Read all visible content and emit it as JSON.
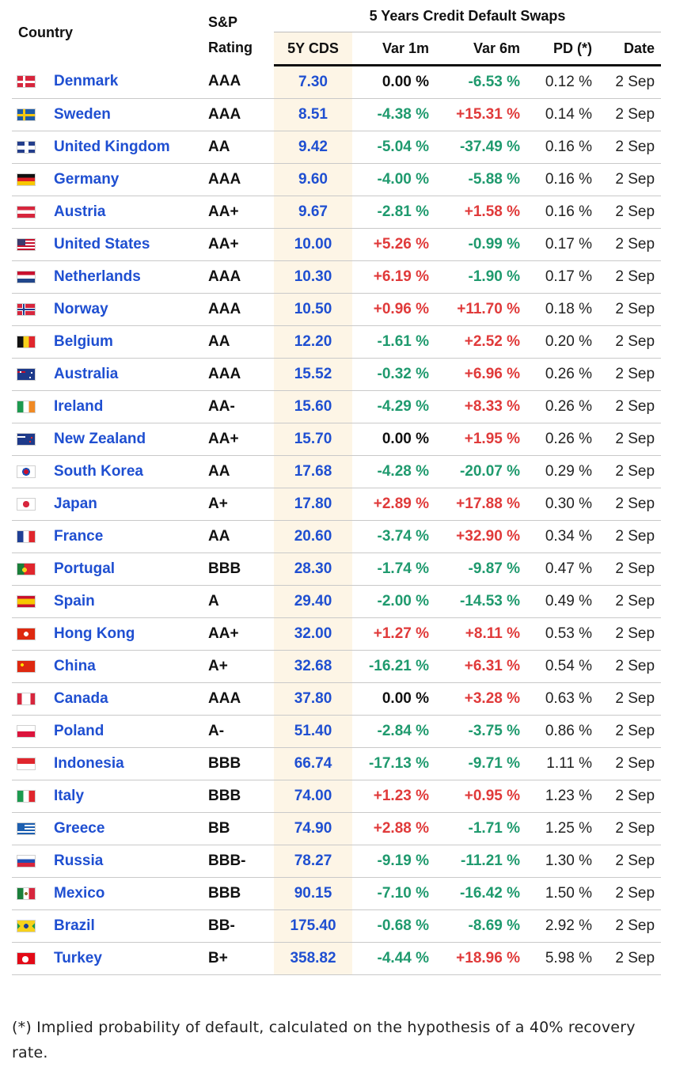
{
  "header": {
    "country": "Country",
    "rating": "S&P Rating",
    "group": "5 Years Credit Default Swaps",
    "cds": "5Y CDS",
    "var1m": "Var 1m",
    "var6m": "Var 6m",
    "pd": "PD (*)",
    "date": "Date"
  },
  "rows": [
    {
      "flag": "denmark-flag",
      "country": "Denmark",
      "rating": "AAA",
      "cds": "7.30",
      "var1m": "0.00 %",
      "var6m": "-6.53 %",
      "pd": "0.12 %",
      "date": "2 Sep"
    },
    {
      "flag": "sweden-flag",
      "country": "Sweden",
      "rating": "AAA",
      "cds": "8.51",
      "var1m": "-4.38 %",
      "var6m": "+15.31 %",
      "pd": "0.14 %",
      "date": "2 Sep"
    },
    {
      "flag": "uk-flag",
      "country": "United Kingdom",
      "rating": "AA",
      "cds": "9.42",
      "var1m": "-5.04 %",
      "var6m": "-37.49 %",
      "pd": "0.16 %",
      "date": "2 Sep"
    },
    {
      "flag": "germany-flag",
      "country": "Germany",
      "rating": "AAA",
      "cds": "9.60",
      "var1m": "-4.00 %",
      "var6m": "-5.88 %",
      "pd": "0.16 %",
      "date": "2 Sep"
    },
    {
      "flag": "austria-flag",
      "country": "Austria",
      "rating": "AA+",
      "cds": "9.67",
      "var1m": "-2.81 %",
      "var6m": "+1.58 %",
      "pd": "0.16 %",
      "date": "2 Sep"
    },
    {
      "flag": "us-flag",
      "country": "United States",
      "rating": "AA+",
      "cds": "10.00",
      "var1m": "+5.26 %",
      "var6m": "-0.99 %",
      "pd": "0.17 %",
      "date": "2 Sep"
    },
    {
      "flag": "netherlands-flag",
      "country": "Netherlands",
      "rating": "AAA",
      "cds": "10.30",
      "var1m": "+6.19 %",
      "var6m": "-1.90 %",
      "pd": "0.17 %",
      "date": "2 Sep"
    },
    {
      "flag": "norway-flag",
      "country": "Norway",
      "rating": "AAA",
      "cds": "10.50",
      "var1m": "+0.96 %",
      "var6m": "+11.70 %",
      "pd": "0.18 %",
      "date": "2 Sep"
    },
    {
      "flag": "belgium-flag",
      "country": "Belgium",
      "rating": "AA",
      "cds": "12.20",
      "var1m": "-1.61 %",
      "var6m": "+2.52 %",
      "pd": "0.20 %",
      "date": "2 Sep"
    },
    {
      "flag": "australia-flag",
      "country": "Australia",
      "rating": "AAA",
      "cds": "15.52",
      "var1m": "-0.32 %",
      "var6m": "+6.96 %",
      "pd": "0.26 %",
      "date": "2 Sep"
    },
    {
      "flag": "ireland-flag",
      "country": "Ireland",
      "rating": "AA-",
      "cds": "15.60",
      "var1m": "-4.29 %",
      "var6m": "+8.33 %",
      "pd": "0.26 %",
      "date": "2 Sep"
    },
    {
      "flag": "new-zealand-flag",
      "country": "New Zealand",
      "rating": "AA+",
      "cds": "15.70",
      "var1m": "0.00 %",
      "var6m": "+1.95 %",
      "pd": "0.26 %",
      "date": "2 Sep"
    },
    {
      "flag": "south-korea-flag",
      "country": "South Korea",
      "rating": "AA",
      "cds": "17.68",
      "var1m": "-4.28 %",
      "var6m": "-20.07 %",
      "pd": "0.29 %",
      "date": "2 Sep"
    },
    {
      "flag": "japan-flag",
      "country": "Japan",
      "rating": "A+",
      "cds": "17.80",
      "var1m": "+2.89 %",
      "var6m": "+17.88 %",
      "pd": "0.30 %",
      "date": "2 Sep"
    },
    {
      "flag": "france-flag",
      "country": "France",
      "rating": "AA",
      "cds": "20.60",
      "var1m": "-3.74 %",
      "var6m": "+32.90 %",
      "pd": "0.34 %",
      "date": "2 Sep"
    },
    {
      "flag": "portugal-flag",
      "country": "Portugal",
      "rating": "BBB",
      "cds": "28.30",
      "var1m": "-1.74 %",
      "var6m": "-9.87 %",
      "pd": "0.47 %",
      "date": "2 Sep"
    },
    {
      "flag": "spain-flag",
      "country": "Spain",
      "rating": "A",
      "cds": "29.40",
      "var1m": "-2.00 %",
      "var6m": "-14.53 %",
      "pd": "0.49 %",
      "date": "2 Sep"
    },
    {
      "flag": "hong-kong-flag",
      "country": "Hong Kong",
      "rating": "AA+",
      "cds": "32.00",
      "var1m": "+1.27 %",
      "var6m": "+8.11 %",
      "pd": "0.53 %",
      "date": "2 Sep"
    },
    {
      "flag": "china-flag",
      "country": "China",
      "rating": "A+",
      "cds": "32.68",
      "var1m": "-16.21 %",
      "var6m": "+6.31 %",
      "pd": "0.54 %",
      "date": "2 Sep"
    },
    {
      "flag": "canada-flag",
      "country": "Canada",
      "rating": "AAA",
      "cds": "37.80",
      "var1m": "0.00 %",
      "var6m": "+3.28 %",
      "pd": "0.63 %",
      "date": "2 Sep"
    },
    {
      "flag": "poland-flag",
      "country": "Poland",
      "rating": "A-",
      "cds": "51.40",
      "var1m": "-2.84 %",
      "var6m": "-3.75 %",
      "pd": "0.86 %",
      "date": "2 Sep"
    },
    {
      "flag": "indonesia-flag",
      "country": "Indonesia",
      "rating": "BBB",
      "cds": "66.74",
      "var1m": "-17.13 %",
      "var6m": "-9.71 %",
      "pd": "1.11 %",
      "date": "2 Sep"
    },
    {
      "flag": "italy-flag",
      "country": "Italy",
      "rating": "BBB",
      "cds": "74.00",
      "var1m": "+1.23 %",
      "var6m": "+0.95 %",
      "pd": "1.23 %",
      "date": "2 Sep"
    },
    {
      "flag": "greece-flag",
      "country": "Greece",
      "rating": "BB",
      "cds": "74.90",
      "var1m": "+2.88 %",
      "var6m": "-1.71 %",
      "pd": "1.25 %",
      "date": "2 Sep"
    },
    {
      "flag": "russia-flag",
      "country": "Russia",
      "rating": "BBB-",
      "cds": "78.27",
      "var1m": "-9.19 %",
      "var6m": "-11.21 %",
      "pd": "1.30 %",
      "date": "2 Sep"
    },
    {
      "flag": "mexico-flag",
      "country": "Mexico",
      "rating": "BBB",
      "cds": "90.15",
      "var1m": "-7.10 %",
      "var6m": "-16.42 %",
      "pd": "1.50 %",
      "date": "2 Sep"
    },
    {
      "flag": "brazil-flag",
      "country": "Brazil",
      "rating": "BB-",
      "cds": "175.40",
      "var1m": "-0.68 %",
      "var6m": "-8.69 %",
      "pd": "2.92 %",
      "date": "2 Sep"
    },
    {
      "flag": "turkey-flag",
      "country": "Turkey",
      "rating": "B+",
      "cds": "358.82",
      "var1m": "-4.44 %",
      "var6m": "+18.96 %",
      "pd": "5.98 %",
      "date": "2 Sep"
    }
  ],
  "footnote": "(*) Implied probability of default, calculated on the hypothesis of a 40% recovery rate.",
  "colors": {
    "link": "#1f4fd1",
    "positive": "#e03a3a",
    "negative": "#1f9a6e",
    "cds_column_bg": "#fdf5e6"
  }
}
